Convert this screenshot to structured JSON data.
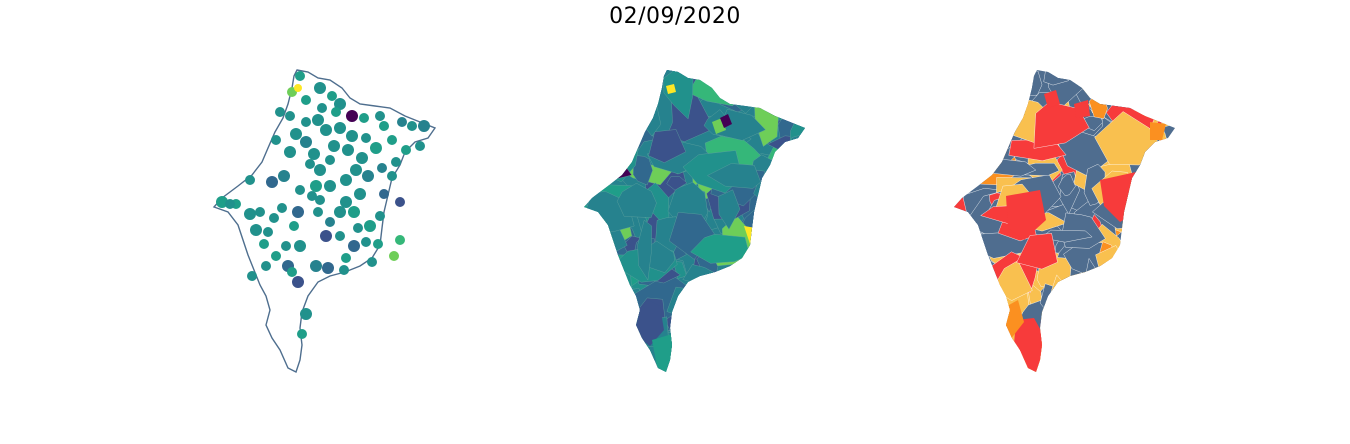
{
  "title": "02/09/2020",
  "colors": {
    "outline": "#4e6e8e",
    "viridis": [
      "#3b528b",
      "#31688e",
      "#26828e",
      "#21918c",
      "#1f9e89",
      "#35b779",
      "#6ece58",
      "#fde725",
      "#440154"
    ],
    "risk": [
      "#4f6d8f",
      "#f9c04f",
      "#fb9020",
      "#f73b3b"
    ]
  },
  "panels": [
    {
      "name": "points-map",
      "style": "bubble points over state outline"
    },
    {
      "name": "choropleth-viridis",
      "style": "municipal choropleth, viridis scale"
    },
    {
      "name": "choropleth-risk",
      "style": "municipal choropleth, categorical risk colors"
    }
  ]
}
